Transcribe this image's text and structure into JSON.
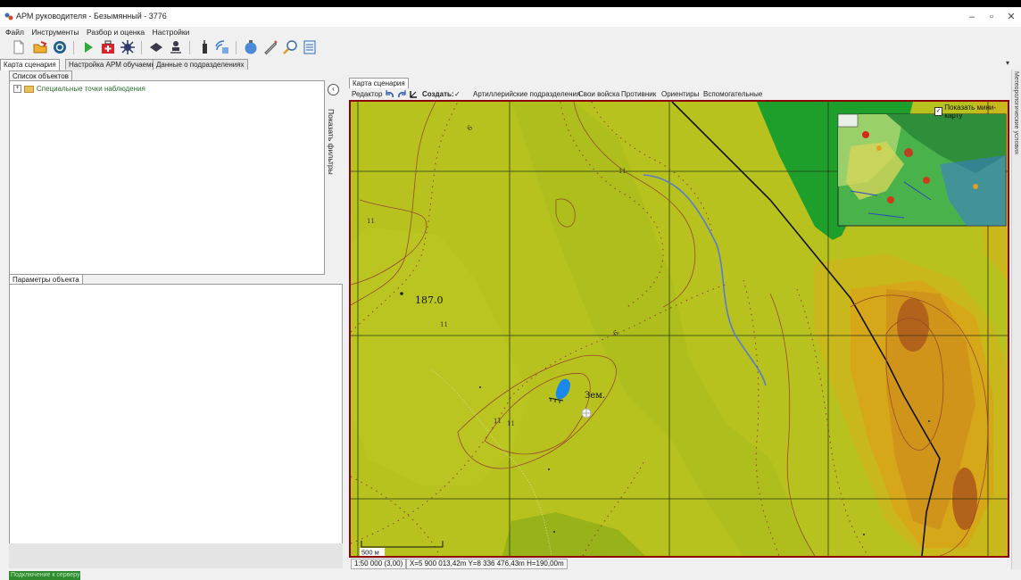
{
  "window": {
    "title": "АРМ руководителя - Безымянный - 3776",
    "controls": {
      "minimize": "–",
      "restore": "▫",
      "close": "✕"
    }
  },
  "menu": [
    "Файл",
    "Инструменты",
    "Разбор и оценка",
    "Настройки"
  ],
  "toolbar": {
    "icons": [
      "new-doc-icon",
      "open-folder-icon",
      "refresh-icon",
      "play-icon",
      "medkit-icon",
      "burst-icon",
      "shield-icon",
      "person-icon",
      "radio-icon",
      "satellite-icon",
      "globe-icon",
      "pen-icon",
      "magnifier-icon",
      "list-icon"
    ]
  },
  "tabs": [
    "Карта сценария",
    "Настройка АРМ обучаемых",
    "Данные о подразделениях"
  ],
  "object_list": {
    "header": "Список объектов",
    "items": [
      {
        "expander": "+",
        "label": "Специальные точки наблюдения"
      }
    ]
  },
  "filters_label": "Показать фильтры",
  "params": {
    "header": "Параметры объекта"
  },
  "side_strip_label": "Метеорологические условия",
  "map_tab": "Карта сценария",
  "map_toolbar": {
    "editor": "Редактор",
    "create": "Создать:",
    "check": "✓",
    "items": [
      "Артиллерийские подразделения",
      "Свои войска",
      "Противник",
      "Ориентиры",
      "Вспомогательные"
    ]
  },
  "map": {
    "show_minimap_label": "Показать мини-карту",
    "show_minimap": true,
    "elevation_label": "187.0",
    "place_label": "Зем.",
    "scale_label": "500 м",
    "contour_marks": [
      "6",
      "6",
      "11",
      "11",
      "11",
      "11",
      "11"
    ],
    "colors": {
      "base": "#b7c21f",
      "forest": "#1e9e2a",
      "high": "#d49a1a",
      "peak": "#b2621a",
      "water": "#1a88e8",
      "river": "#5a7acc"
    }
  },
  "status": {
    "scale": "1:50 000 (3,00)",
    "coords": "X=5 900 013,42m Y=8 336 476,43m H=190,00m"
  },
  "bottom_status": "Подключение к серверу"
}
